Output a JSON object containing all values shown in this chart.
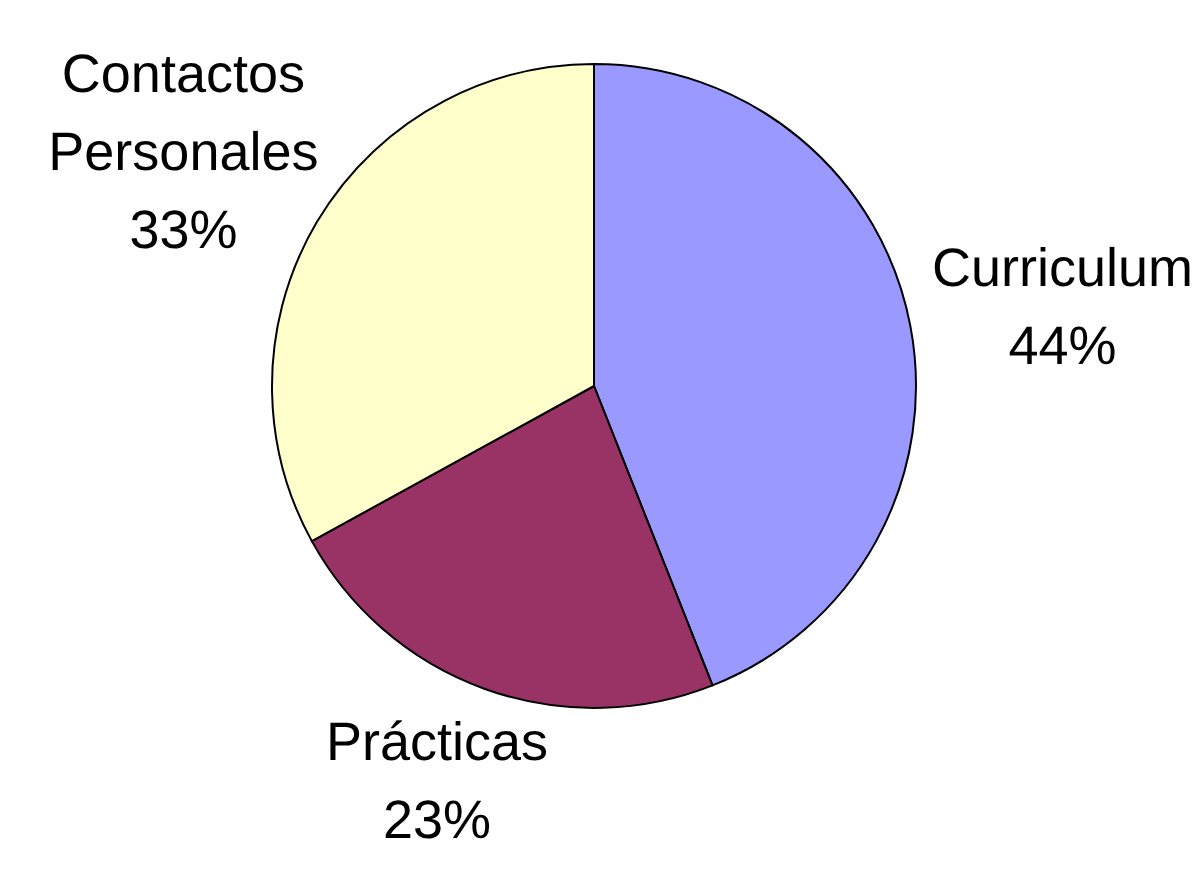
{
  "chart_data": {
    "type": "pie",
    "categories": [
      "Curriculum",
      "Prácticas",
      "Contactos Personales"
    ],
    "values": [
      44,
      23,
      33
    ],
    "colors": [
      "#9999ff",
      "#993366",
      "#ffffcc"
    ],
    "value_labels": [
      "44%",
      "23%",
      "33%"
    ]
  }
}
